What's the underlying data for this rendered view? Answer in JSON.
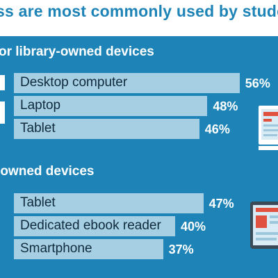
{
  "title": "ss are most commonly used by students to re",
  "colors": {
    "background": "#1e84b7",
    "bar": "#a6cfe4",
    "header_bg": "#ffffff",
    "title_text": "#1e84b7",
    "label_text": "#0f2a3a",
    "value_text": "#ffffff"
  },
  "chart_data": [
    {
      "type": "bar",
      "orientation": "horizontal",
      "title": "or library-owned devices",
      "categories": [
        "Desktop computer",
        "Laptop",
        "Tablet"
      ],
      "values": [
        56,
        48,
        46
      ],
      "value_labels": [
        "56%",
        "48%",
        "46%"
      ],
      "unit": "%",
      "xlim": [
        0,
        100
      ]
    },
    {
      "type": "bar",
      "orientation": "horizontal",
      "title": "-owned devices",
      "categories": [
        "Tablet",
        "Dedicated ebook reader",
        "Smartphone"
      ],
      "values": [
        47,
        40,
        37
      ],
      "value_labels": [
        "47%",
        "40%",
        "37%"
      ],
      "unit": "%",
      "xlim": [
        0,
        100
      ]
    }
  ],
  "icons": {
    "group1": "laptop-icon",
    "group2": "tablet-icon"
  }
}
